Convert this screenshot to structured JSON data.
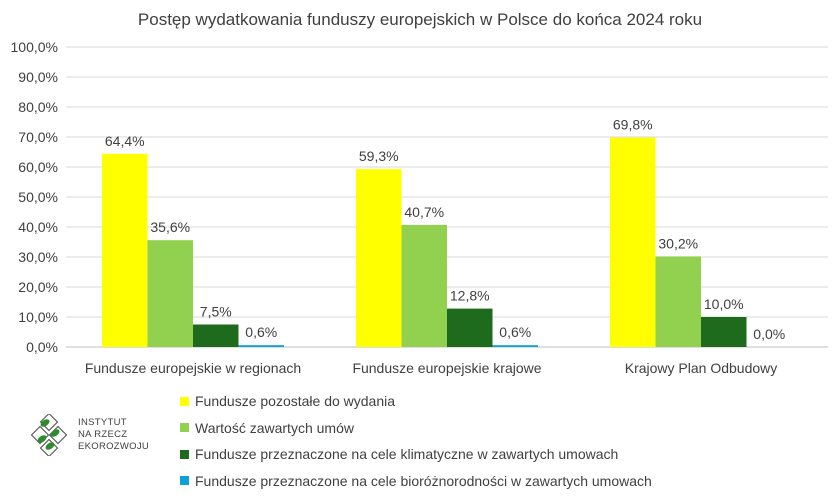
{
  "chart_data": {
    "type": "bar",
    "title": "Postęp wydatkowania funduszy europejskich w Polsce do końca 2024 roku",
    "categories": [
      "Fundusze europejskie w regionach",
      "Fundusze europejskie krajowe",
      "Krajowy Plan Odbudowy"
    ],
    "series": [
      {
        "name": "Fundusze pozostałe do wydania",
        "color": "#FFFF00",
        "values": [
          64.4,
          59.3,
          69.8
        ],
        "labels": [
          "64,4%",
          "59,3%",
          "69,8%"
        ]
      },
      {
        "name": "Wartość zawartych umów",
        "color": "#92D050",
        "values": [
          35.6,
          40.7,
          30.2
        ],
        "labels": [
          "35,6%",
          "40,7%",
          "30,2%"
        ]
      },
      {
        "name": "Fundusze przeznaczone na cele klimatyczne w zawartych umowach",
        "color": "#1E6B1E",
        "values": [
          7.5,
          12.8,
          10.0
        ],
        "labels": [
          "7,5%",
          "12,8%",
          "10,0%"
        ]
      },
      {
        "name": "Fundusze przeznaczone na cele bioróżnorodności w zawartych umowach",
        "color": "#0AA0D8",
        "values": [
          0.6,
          0.6,
          0.0
        ],
        "labels": [
          "0,6%",
          "0,6%",
          "0,0%"
        ]
      }
    ],
    "ylim": [
      0,
      100
    ],
    "yticks": [
      "0,0%",
      "10,0%",
      "20,0%",
      "30,0%",
      "40,0%",
      "50,0%",
      "60,0%",
      "70,0%",
      "80,0%",
      "90,0%",
      "100,0%"
    ],
    "grid": true,
    "legend_position": "bottom"
  },
  "logo": {
    "lines": [
      "INSTYTUT",
      "NA RZECZ",
      "EKOROZWOJU"
    ]
  }
}
